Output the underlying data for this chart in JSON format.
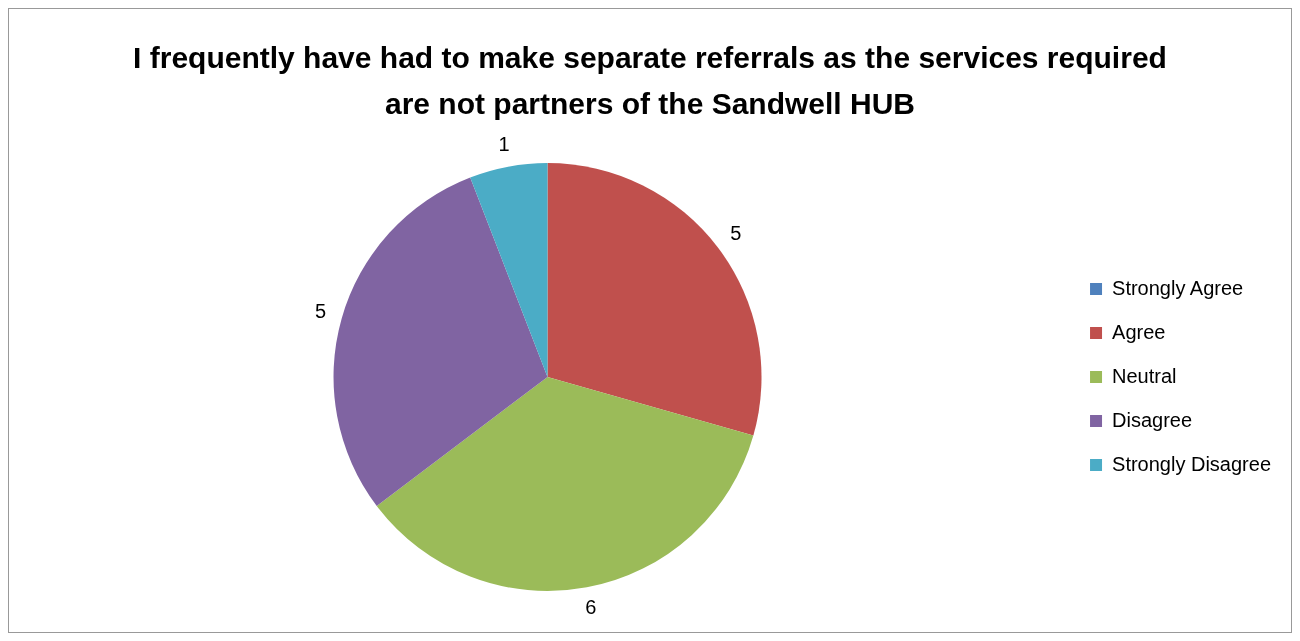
{
  "chart_data": {
    "type": "pie",
    "title": "I frequently have had to make separate referrals as the services required are not partners of the Sandwell HUB",
    "categories": [
      "Strongly Agree",
      "Agree",
      "Neutral",
      "Disagree",
      "Strongly Disagree"
    ],
    "values": [
      0,
      5,
      6,
      5,
      1
    ],
    "value_labels": [
      null,
      "5",
      "6",
      "5",
      "1"
    ],
    "colors": [
      "#4f81bd",
      "#c0504d",
      "#9bbb59",
      "#8064a2",
      "#4bacc6"
    ],
    "legend": "right"
  }
}
